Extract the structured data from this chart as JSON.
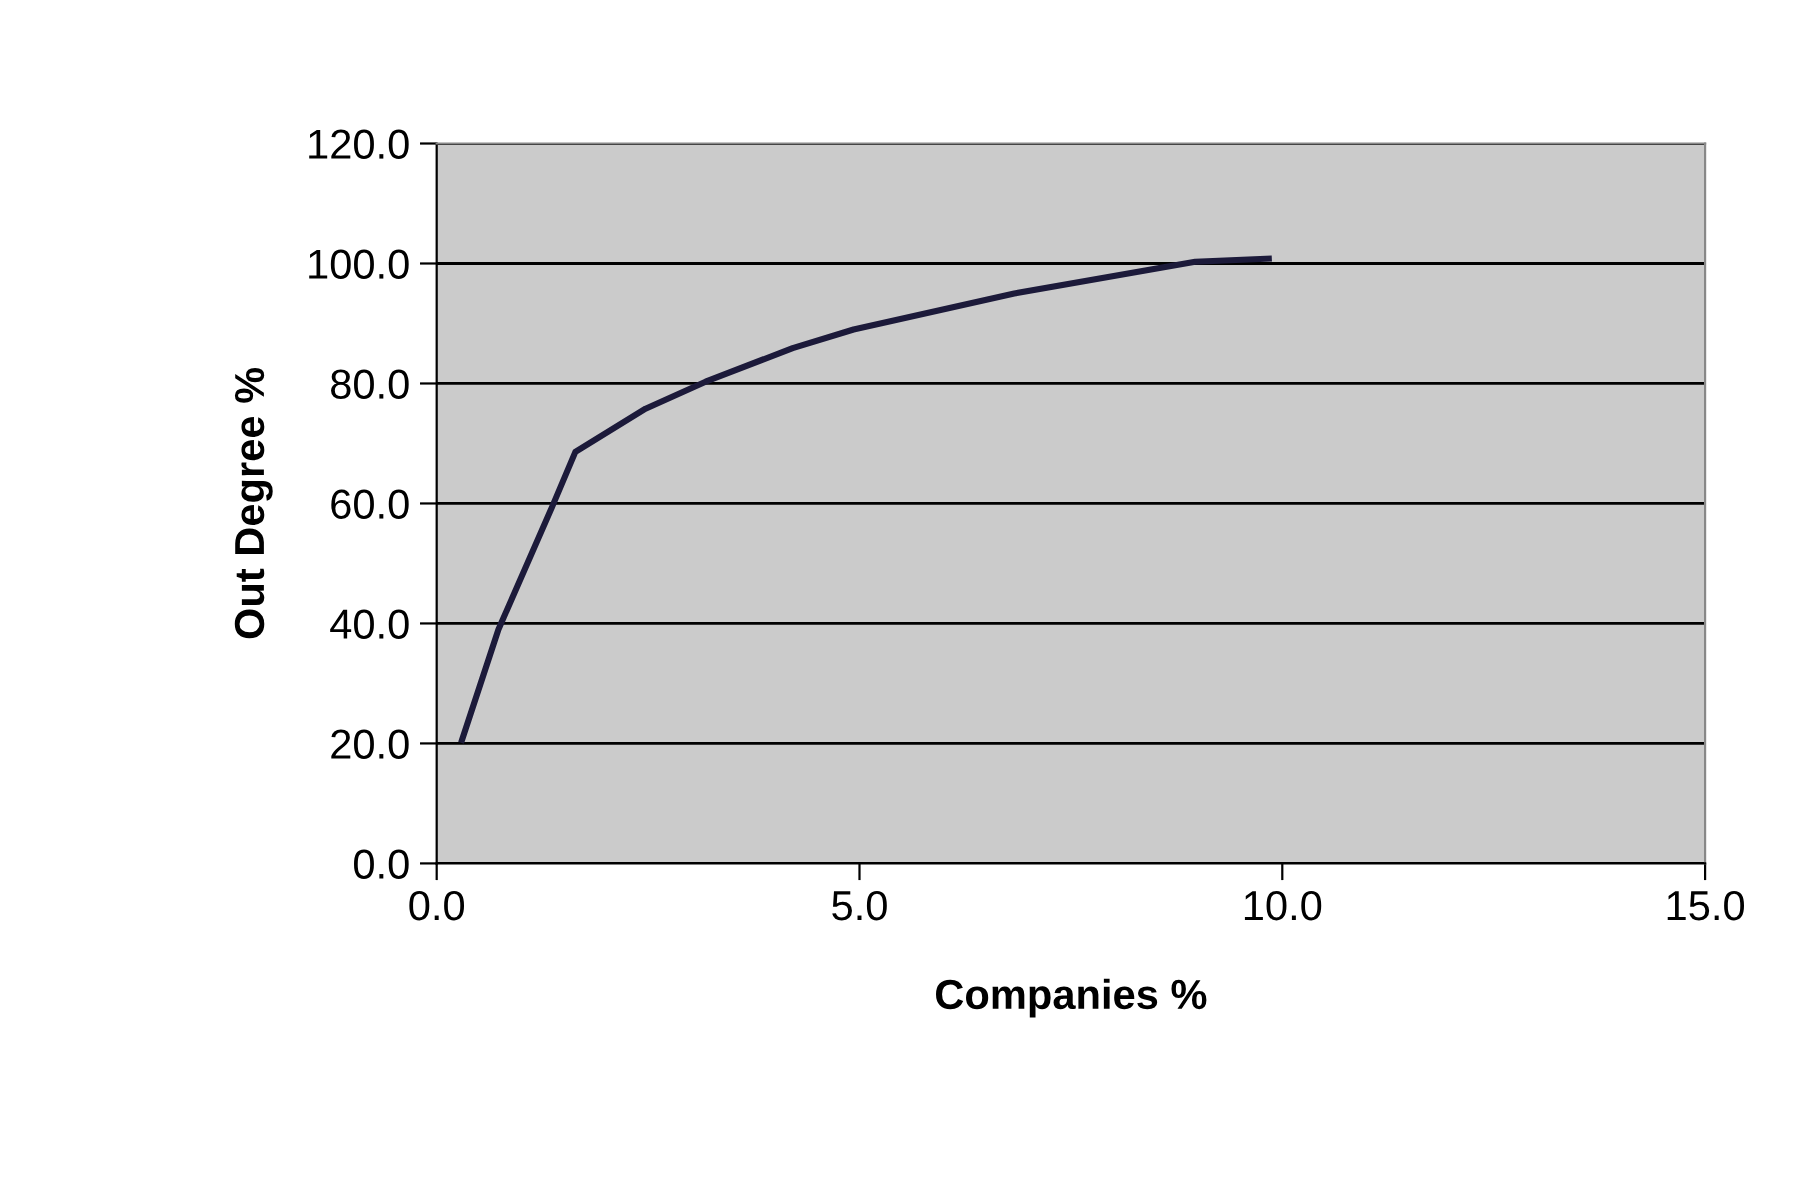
{
  "chart_data": {
    "type": "line",
    "xlabel": "Companies %",
    "ylabel": "Out Degree %",
    "series": [
      {
        "color": "#1c1a3a",
        "x": [
          0.3,
          0.73,
          1.37,
          1.64,
          2.47,
          3.18,
          4.21,
          4.93,
          6.83,
          8.97,
          9.84
        ],
        "values": [
          20.6,
          39.0,
          59.6,
          68.6,
          75.8,
          80.3,
          85.9,
          89.0,
          95.0,
          100.3,
          100.8
        ]
      }
    ],
    "xlim": [
      0,
      15
    ],
    "ylim": [
      0,
      120
    ],
    "xticks": [
      {
        "value": 0,
        "label": "0.0"
      },
      {
        "value": 5,
        "label": "5.0"
      },
      {
        "value": 10,
        "label": "10.0"
      },
      {
        "value": 15,
        "label": "15.0"
      }
    ],
    "yticks": [
      {
        "value": 0,
        "label": "0.0"
      },
      {
        "value": 20,
        "label": "20.0"
      },
      {
        "value": 40,
        "label": "40.0"
      },
      {
        "value": 60,
        "label": "60.0"
      },
      {
        "value": 80,
        "label": "80.0"
      },
      {
        "value": 100,
        "label": "100.0"
      },
      {
        "value": 120,
        "label": "120.0"
      }
    ],
    "grid": "y",
    "legend": false,
    "marker": "none",
    "line_style": "solid"
  }
}
